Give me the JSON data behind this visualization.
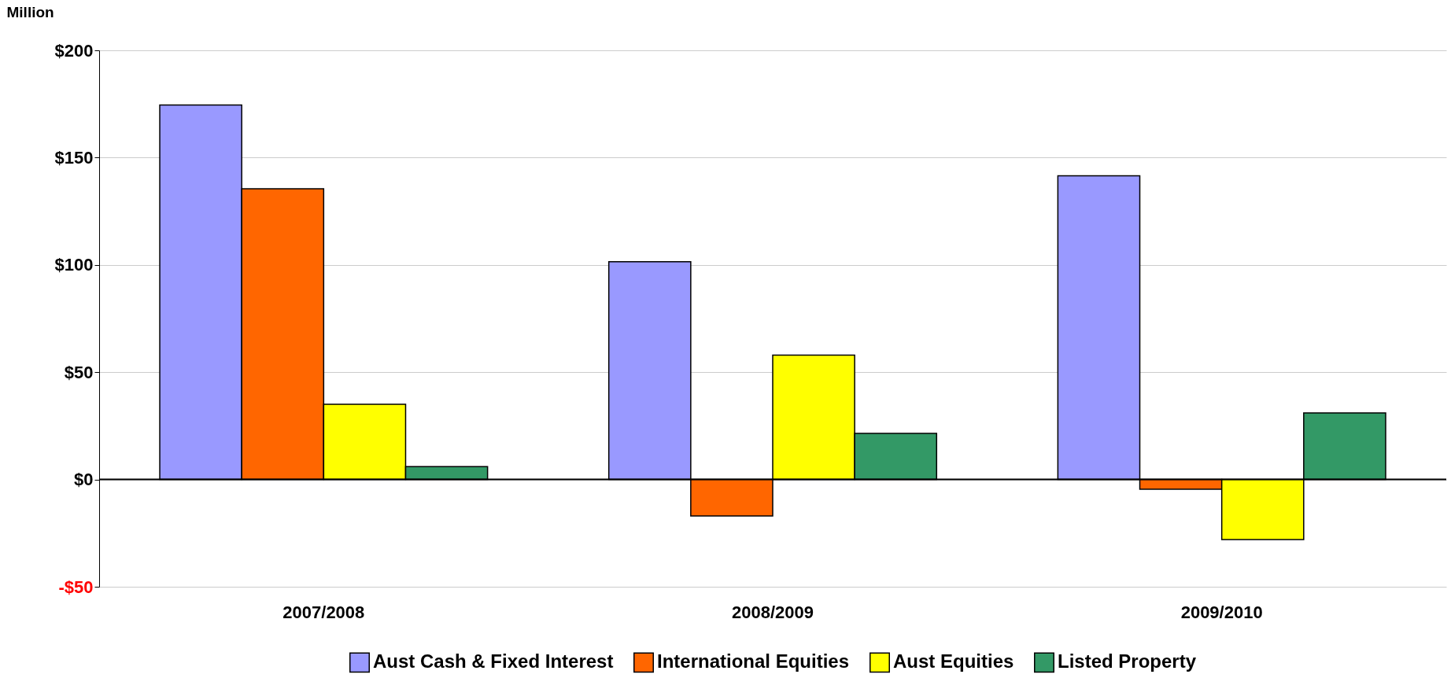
{
  "chart_data": {
    "type": "bar",
    "ylabel": "Million",
    "categories": [
      "2007/2008",
      "2008/2009",
      "2009/2010"
    ],
    "series": [
      {
        "name": "Aust Cash & Fixed Interest",
        "color": "#9999ff",
        "values": [
          174.5,
          101.5,
          141.5
        ]
      },
      {
        "name": "International Equities",
        "color": "#ff6600",
        "values": [
          135.5,
          -17,
          -4.5
        ]
      },
      {
        "name": "Aust Equities",
        "color": "#ffff00",
        "values": [
          35,
          58,
          -28
        ]
      },
      {
        "name": "Listed Property",
        "color": "#339966",
        "values": [
          6,
          21.5,
          31
        ]
      }
    ],
    "ylim": [
      -50,
      200
    ],
    "yticks": [
      {
        "value": -50,
        "label": "-$50"
      },
      {
        "value": 0,
        "label": "$0"
      },
      {
        "value": 50,
        "label": "$50"
      },
      {
        "value": 100,
        "label": "$100"
      },
      {
        "value": 150,
        "label": "$150"
      },
      {
        "value": 200,
        "label": "$200"
      }
    ],
    "ref_lines": [
      {
        "axis": "y",
        "value": 0
      }
    ],
    "grid": "y",
    "legend": "bottom"
  }
}
